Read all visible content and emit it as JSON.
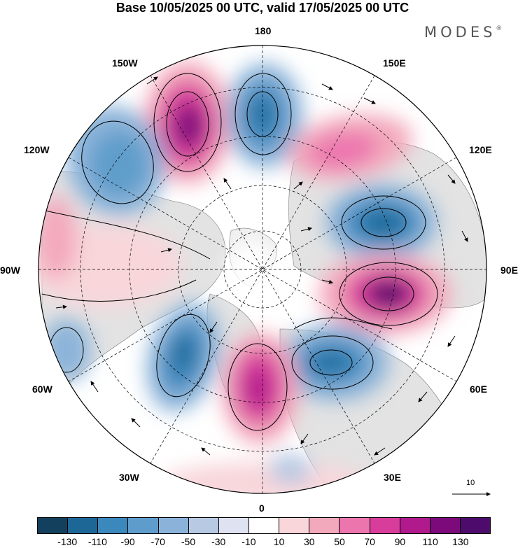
{
  "header": {
    "title": "Base 10/05/2025 00 UTC, valid 17/05/2025 00 UTC",
    "brand": "MODES",
    "brand_mark": "®"
  },
  "map": {
    "projection": "north-polar-stereographic",
    "lon_labels": {
      "n180": "180",
      "e150": "150E",
      "e120": "120E",
      "e90": "90E",
      "e60": "60E",
      "e30": "30E",
      "s0": "0",
      "w30": "30W",
      "w60": "60W",
      "w90": "90W",
      "w120": "120W",
      "w150": "150W"
    },
    "wind_vector_reference": "10",
    "anomaly_centers": [
      {
        "lon": "150W-165W",
        "sign": "positive",
        "max": 110
      },
      {
        "lon": "170E-180",
        "sign": "negative",
        "max": -110
      },
      {
        "lon": "120E-150E",
        "sign": "positive",
        "max": 70
      },
      {
        "lon": "100E",
        "sign": "negative",
        "max": -110
      },
      {
        "lon": "80E",
        "sign": "positive",
        "max": 130
      },
      {
        "lon": "40E",
        "sign": "negative",
        "max": -110
      },
      {
        "lon": "0-10E",
        "sign": "positive",
        "max": 110
      },
      {
        "lon": "20W-40W",
        "sign": "negative",
        "max": -110
      },
      {
        "lon": "120W-135W",
        "sign": "negative",
        "max": -70
      },
      {
        "lon": "90W-105W",
        "sign": "positive",
        "max": 30
      },
      {
        "lon": "60W",
        "sign": "negative",
        "max": -50
      }
    ]
  },
  "colorbar": {
    "colors": [
      "#13405c",
      "#1d6797",
      "#3b88bd",
      "#5e9dcb",
      "#8bb3d9",
      "#b7c9e3",
      "#dfe2f0",
      "#ffffff",
      "#f8d6da",
      "#f3a9bc",
      "#ec75ae",
      "#d93d9c",
      "#b11a8c",
      "#7d0a7a",
      "#4d0c6b"
    ],
    "ticks": [
      "-130",
      "-110",
      "-90",
      "-70",
      "-50",
      "-30",
      "-10",
      "10",
      "30",
      "50",
      "70",
      "90",
      "110",
      "130"
    ]
  }
}
